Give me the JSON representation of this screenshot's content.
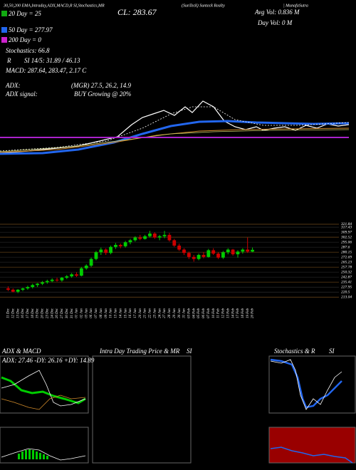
{
  "chart_data": {
    "type": "candlestick",
    "header": "30,50,200 EMA,Intraday,ADX,MACD,R SI,Stochastics,MR",
    "title": "(SunTeck) Sunteck Realty",
    "site": "| MunafaSutra",
    "close_label": "CL: 283.67",
    "avg_vol": "Avg Vol: 0.836 M",
    "day_vol": "Day Vol: 0  M",
    "ema20": "20 Day = 25",
    "ema50": "50 Day = 277.97",
    "ema200": "200 Day = 0",
    "stochastics": "Stochastics: 66.8",
    "rsi_r": "R",
    "rsi": "SI 14/5: 31.89 / 46.13",
    "macd": "MACD: 287.64, 283.47, 2.17 C",
    "adx_label": "ADX:",
    "adx": "(MGR) 27.5, 26.2, 14.9",
    "adx_signal_label": "ADX  signal:",
    "adx_signal": "BUY Growing @ 20%",
    "panel_adx_title": "ADX  & MACD",
    "panel_adx_text": "ADX: 27.46  -DY: 26.16  +DY: 14.89",
    "panel_intraday_title": "Intra Day Trading Price  & MR",
    "panel_intraday_si": "SI",
    "panel_stoch_title": "Stochastics & R",
    "panel_stoch_si": "SI",
    "ylim": [
      210,
      325
    ],
    "yticks": [
      321.84,
      317.43,
      309.97,
      302.52,
      295.06,
      287.6,
      280.15,
      272.69,
      265.23,
      257.78,
      250.32,
      242.87,
      235.41,
      227.95,
      220.5,
      213.04
    ],
    "up_color": "#00cc00",
    "down_color": "#cc0000",
    "candles": [
      {
        "date": "11 Dec",
        "open": 226,
        "high": 229,
        "low": 222,
        "close": 224
      },
      {
        "date": "12 Dec",
        "open": 224,
        "high": 226,
        "low": 220,
        "close": 221
      },
      {
        "date": "13 Dec",
        "open": 221,
        "high": 225,
        "low": 219,
        "close": 224
      },
      {
        "date": "16 Dec",
        "open": 224,
        "high": 227,
        "low": 222,
        "close": 226
      },
      {
        "date": "17 Dec",
        "open": 226,
        "high": 230,
        "low": 224,
        "close": 228
      },
      {
        "date": "18 Dec",
        "open": 228,
        "high": 233,
        "low": 226,
        "close": 231
      },
      {
        "date": "19 Dec",
        "open": 231,
        "high": 234,
        "low": 228,
        "close": 233
      },
      {
        "date": "20 Dec",
        "open": 233,
        "high": 237,
        "low": 231,
        "close": 235
      },
      {
        "date": "23 Dec",
        "open": 235,
        "high": 239,
        "low": 233,
        "close": 237
      },
      {
        "date": "24 Dec",
        "open": 237,
        "high": 241,
        "low": 235,
        "close": 239
      },
      {
        "date": "26 Dec",
        "open": 239,
        "high": 242,
        "low": 236,
        "close": 238
      },
      {
        "date": "27 Dec",
        "open": 238,
        "high": 243,
        "low": 236,
        "close": 242
      },
      {
        "date": "30 Dec",
        "open": 242,
        "high": 246,
        "low": 240,
        "close": 244
      },
      {
        "date": "31 Dec",
        "open": 244,
        "high": 249,
        "low": 242,
        "close": 247
      },
      {
        "date": "01 Jan",
        "open": 247,
        "high": 250,
        "low": 243,
        "close": 245
      },
      {
        "date": "02 Jan",
        "open": 245,
        "high": 258,
        "low": 244,
        "close": 256
      },
      {
        "date": "03 Jan",
        "open": 256,
        "high": 262,
        "low": 254,
        "close": 260
      },
      {
        "date": "06 Jan",
        "open": 260,
        "high": 272,
        "low": 258,
        "close": 270
      },
      {
        "date": "07 Jan",
        "open": 270,
        "high": 282,
        "low": 268,
        "close": 280
      },
      {
        "date": "08 Jan",
        "open": 280,
        "high": 287,
        "low": 276,
        "close": 284
      },
      {
        "date": "09 Jan",
        "open": 284,
        "high": 286,
        "low": 276,
        "close": 279
      },
      {
        "date": "10 Jan",
        "open": 279,
        "high": 290,
        "low": 277,
        "close": 288
      },
      {
        "date": "13 Jan",
        "open": 288,
        "high": 294,
        "low": 285,
        "close": 291
      },
      {
        "date": "14 Jan",
        "open": 291,
        "high": 293,
        "low": 286,
        "close": 289
      },
      {
        "date": "15 Jan",
        "open": 289,
        "high": 297,
        "low": 287,
        "close": 295
      },
      {
        "date": "16 Jan",
        "open": 295,
        "high": 300,
        "low": 292,
        "close": 298
      },
      {
        "date": "17 Jan",
        "open": 298,
        "high": 304,
        "low": 296,
        "close": 302
      },
      {
        "date": "20 Jan",
        "open": 302,
        "high": 306,
        "low": 298,
        "close": 300
      },
      {
        "date": "21 Jan",
        "open": 300,
        "high": 306,
        "low": 299,
        "close": 304
      },
      {
        "date": "22 Jan",
        "open": 304,
        "high": 312,
        "low": 302,
        "close": 308
      },
      {
        "date": "23 Jan",
        "open": 308,
        "high": 310,
        "low": 300,
        "close": 302
      },
      {
        "date": "24 Jan",
        "open": 302,
        "high": 306,
        "low": 298,
        "close": 304
      },
      {
        "date": "27 Jan",
        "open": 304,
        "high": 312,
        "low": 301,
        "close": 306
      },
      {
        "date": "28 Jan",
        "open": 306,
        "high": 309,
        "low": 296,
        "close": 298
      },
      {
        "date": "29 Jan",
        "open": 298,
        "high": 300,
        "low": 288,
        "close": 290
      },
      {
        "date": "30 Jan",
        "open": 290,
        "high": 293,
        "low": 282,
        "close": 284
      },
      {
        "date": "31 Jan",
        "open": 284,
        "high": 286,
        "low": 276,
        "close": 279
      },
      {
        "date": "03 Feb",
        "open": 279,
        "high": 281,
        "low": 270,
        "close": 273
      },
      {
        "date": "04 Feb",
        "open": 273,
        "high": 276,
        "low": 266,
        "close": 270
      },
      {
        "date": "05 Feb",
        "open": 270,
        "high": 278,
        "low": 268,
        "close": 276
      },
      {
        "date": "06 Feb",
        "open": 276,
        "high": 280,
        "low": 271,
        "close": 273
      },
      {
        "date": "07 Feb",
        "open": 273,
        "high": 285,
        "low": 272,
        "close": 283
      },
      {
        "date": "10 Feb",
        "open": 283,
        "high": 286,
        "low": 276,
        "close": 278
      },
      {
        "date": "11 Feb",
        "open": 278,
        "high": 280,
        "low": 270,
        "close": 272
      },
      {
        "date": "12 Feb",
        "open": 272,
        "high": 282,
        "low": 270,
        "close": 280
      },
      {
        "date": "13 Feb",
        "open": 280,
        "high": 286,
        "low": 277,
        "close": 284
      },
      {
        "date": "14 Feb",
        "open": 284,
        "high": 285,
        "low": 275,
        "close": 277
      },
      {
        "date": "17 Feb",
        "open": 277,
        "high": 283,
        "low": 272,
        "close": 281
      },
      {
        "date": "18 Feb",
        "open": 281,
        "high": 286,
        "low": 278,
        "close": 284
      },
      {
        "date": "19 Feb",
        "open": 284,
        "high": 302,
        "low": 279,
        "close": 281
      },
      {
        "date": "20 Feb",
        "open": 281,
        "high": 287,
        "low": 280,
        "close": 283.67
      }
    ]
  }
}
